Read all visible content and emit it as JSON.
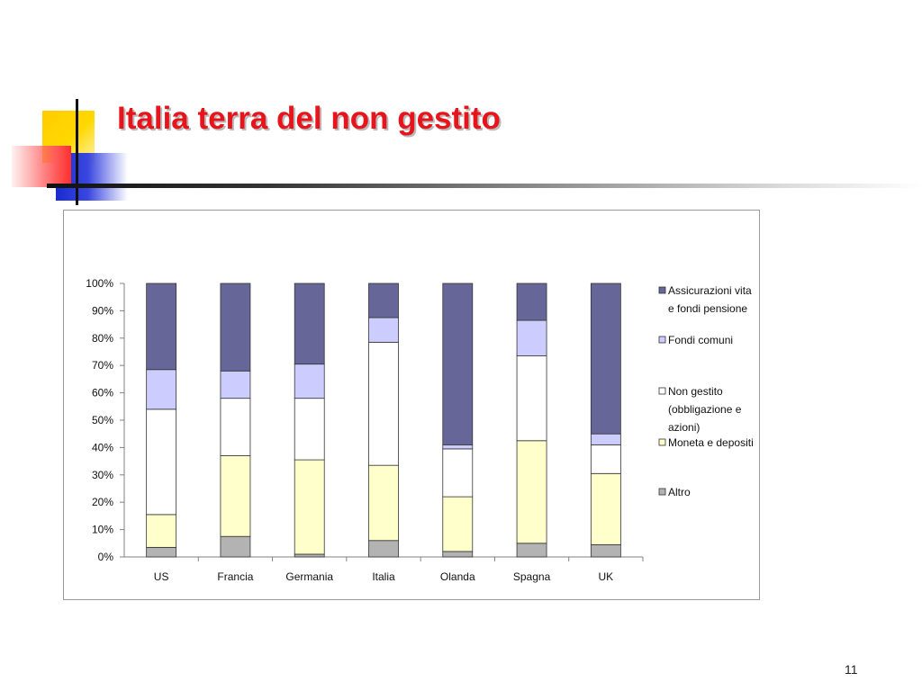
{
  "slide": {
    "title": "Italia terra del non gestito",
    "page_number": "11"
  },
  "chart_data": {
    "type": "bar",
    "stacked": true,
    "categories": [
      "US",
      "Francia",
      "Germania",
      "Italia",
      "Olanda",
      "Spagna",
      "UK"
    ],
    "y_ticks": [
      "0%",
      "10%",
      "20%",
      "30%",
      "40%",
      "50%",
      "60%",
      "70%",
      "80%",
      "90%",
      "100%"
    ],
    "ylim": [
      0,
      100
    ],
    "legend_position": "right",
    "series": [
      {
        "name": "Altro",
        "color": "#b3b3b3",
        "values": [
          3.5,
          7.5,
          1,
          6,
          2,
          5,
          4.5
        ]
      },
      {
        "name": "Moneta e depositi",
        "color": "#ffffcc",
        "values": [
          12,
          29.5,
          34.5,
          27.5,
          20,
          37.5,
          26
        ]
      },
      {
        "name": "Non gestito (obbligazione e azioni)",
        "color": "#ffffff",
        "values": [
          38.5,
          21,
          22.5,
          45,
          17.5,
          31,
          10.5
        ]
      },
      {
        "name": "Fondi comuni",
        "color": "#ccccff",
        "values": [
          14.5,
          10,
          12.5,
          9,
          1.5,
          13,
          4
        ]
      },
      {
        "name": "Assicurazioni vita e fondi pensione",
        "color": "#666699",
        "values": [
          31.5,
          32,
          29.5,
          12.5,
          59,
          13.5,
          55
        ]
      }
    ],
    "legend": [
      {
        "name_lines": [
          "Assicurazioni vita",
          "e fondi pensione"
        ],
        "color": "#666699"
      },
      {
        "name_lines": [
          "Fondi comuni"
        ],
        "color": "#ccccff"
      },
      {
        "name_lines": [
          "Non gestito",
          "(obbligazione e",
          "azioni)"
        ],
        "color": "#ffffff"
      },
      {
        "name_lines": [
          "Moneta e depositi"
        ],
        "color": "#ffffcc"
      },
      {
        "name_lines": [
          "Altro"
        ],
        "color": "#b3b3b3"
      }
    ]
  }
}
